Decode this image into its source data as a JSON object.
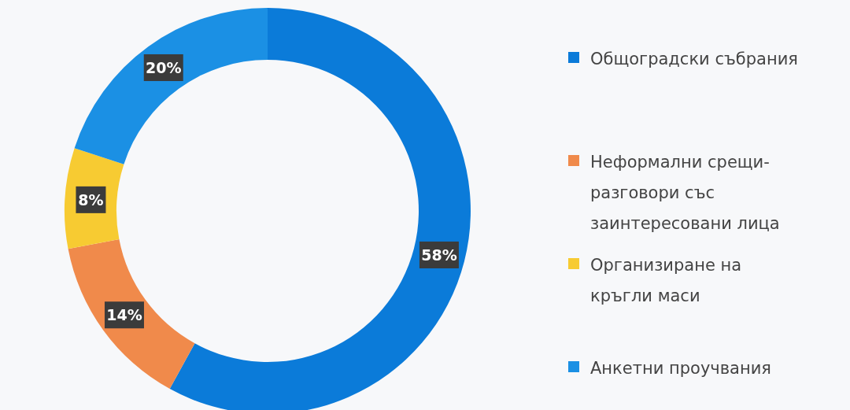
{
  "chart_data": {
    "type": "donut",
    "categories": [
      "Общоградски събрания",
      "Неформални срещи-разговори със заинтересовани лица",
      "Организиране на кръгли маси",
      "Анкетни проучвания"
    ],
    "values": [
      58,
      14,
      8,
      20
    ],
    "colors": [
      "#0b7bd9",
      "#f08a4b",
      "#f7cb32",
      "#1b90e4"
    ],
    "value_labels": [
      "58%",
      "14%",
      "8%",
      "20%"
    ],
    "legend": "right"
  }
}
